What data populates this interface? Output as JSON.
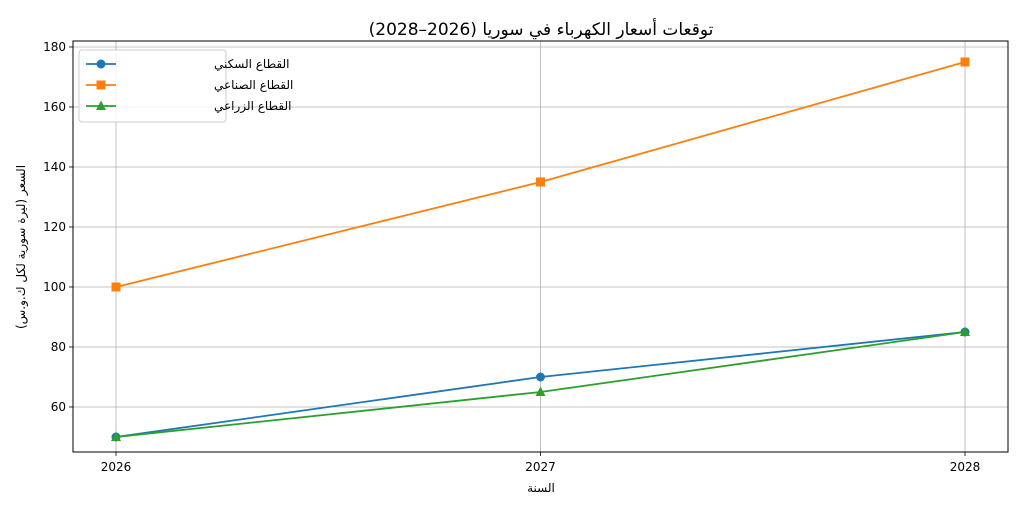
{
  "chart_data": {
    "type": "line",
    "title": "توقعات أسعار الكهرباء في سوريا (2026–2028)",
    "xlabel": "السنة",
    "ylabel": "السعر (ليرة سورية لكل ك.و.س)",
    "x": [
      "2026",
      "2027",
      "2028"
    ],
    "yticks": [
      "60",
      "80",
      "100",
      "120",
      "140",
      "160",
      "180"
    ],
    "ylim": [
      45,
      182
    ],
    "grid": true,
    "legend_position": "top-left",
    "series": [
      {
        "name": "القطاع السكني",
        "values": [
          50,
          70,
          85
        ],
        "color": "#1f77b4",
        "marker": "circle"
      },
      {
        "name": "القطاع الصناعي",
        "values": [
          100,
          135,
          175
        ],
        "color": "#ff7f0e",
        "marker": "square"
      },
      {
        "name": "القطاع الزراعي",
        "values": [
          50,
          65,
          85
        ],
        "color": "#2ca02c",
        "marker": "triangle"
      }
    ]
  }
}
